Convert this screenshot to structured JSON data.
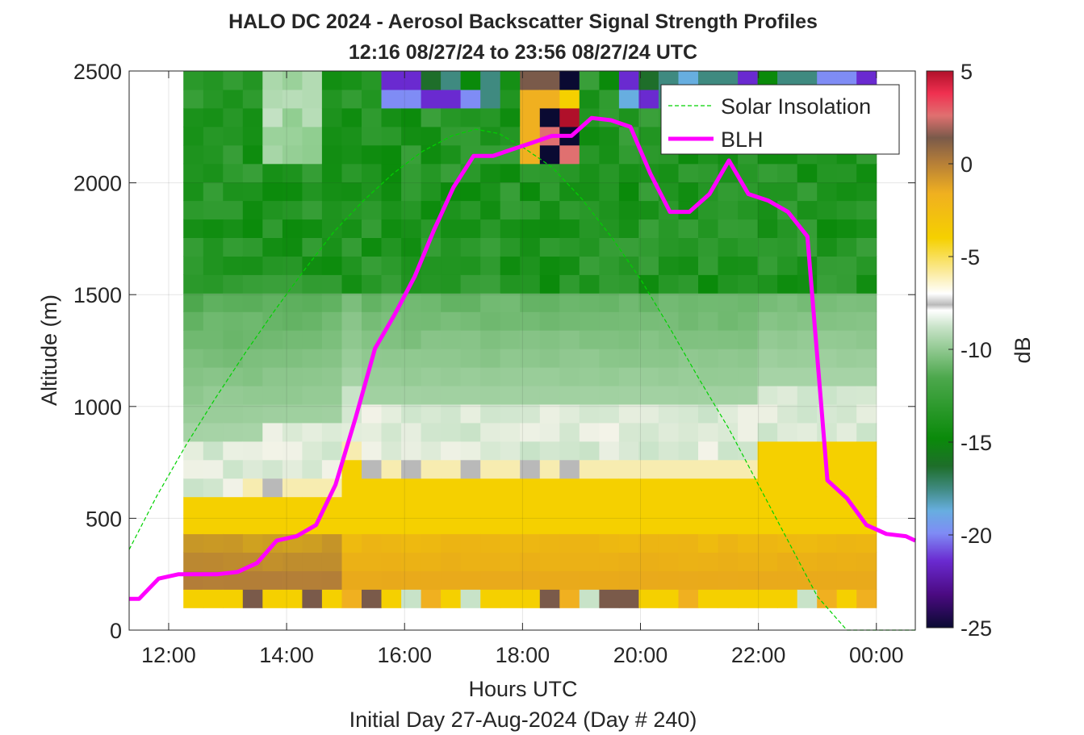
{
  "chart_data": {
    "type": "heatmap",
    "title_line1": "HALO DC 2024 - Aerosol Backscatter Signal Strength Profiles",
    "title_line2": "12:16 08/27/24 to 23:56 08/27/24  UTC",
    "xlabel": "Hours UTC",
    "xlabel2": "Initial Day 27-Aug-2024 (Day # 240)",
    "ylabel": "Altitude (m)",
    "colorbar_label": "dB",
    "xlim_hours": [
      11.33,
      24.66
    ],
    "ylim": [
      0,
      2500
    ],
    "x_ticks": [
      {
        "value": 12,
        "label": "12:00"
      },
      {
        "value": 14,
        "label": "14:00"
      },
      {
        "value": 16,
        "label": "16:00"
      },
      {
        "value": 18,
        "label": "18:00"
      },
      {
        "value": 20,
        "label": "20:00"
      },
      {
        "value": 22,
        "label": "22:00"
      },
      {
        "value": 24,
        "label": "00:00"
      }
    ],
    "y_ticks": [
      0,
      500,
      1000,
      1500,
      2000,
      2500
    ],
    "y_tick_labels": [
      "0",
      "500",
      "1000",
      "1500",
      "2000",
      "2500"
    ],
    "colorbar_ticks": [
      5,
      0,
      -5,
      -10,
      -15,
      -20,
      -25
    ],
    "colorbar_tick_labels": [
      "5",
      "0",
      "-5",
      "-10",
      "-15",
      "-20",
      "-25"
    ],
    "colorbar_range": [
      -25,
      5
    ],
    "grid": true,
    "legend_placement": "top-right",
    "series": [
      {
        "name": "Solar Insolation",
        "style": "dashed",
        "color": "#00d200",
        "x": [
          11.33,
          11.8,
          12.3,
          12.8,
          13.3,
          13.8,
          14.3,
          14.8,
          15.3,
          15.8,
          16.3,
          16.8,
          17.2,
          17.6,
          18.0,
          18.5,
          19.0,
          19.5,
          20.0,
          20.5,
          21.0,
          21.5,
          22.0,
          22.5,
          23.0,
          23.5,
          23.9,
          24.66
        ],
        "y": [
          360,
          600,
          830,
          1040,
          1240,
          1430,
          1610,
          1780,
          1920,
          2040,
          2140,
          2210,
          2240,
          2220,
          2160,
          2070,
          1930,
          1760,
          1570,
          1350,
          1120,
          900,
          650,
          400,
          150,
          0,
          0,
          0
        ]
      },
      {
        "name": "BLH",
        "style": "solid",
        "color": "#ff00ff",
        "x": [
          11.33,
          11.5,
          11.83,
          12.17,
          12.5,
          12.83,
          13.17,
          13.5,
          13.83,
          14.17,
          14.5,
          14.83,
          15.17,
          15.5,
          15.83,
          16.17,
          16.5,
          16.83,
          17.17,
          17.5,
          17.83,
          18.17,
          18.5,
          18.83,
          19.17,
          19.5,
          19.83,
          20.17,
          20.5,
          20.83,
          21.17,
          21.5,
          21.83,
          22.17,
          22.5,
          22.83,
          23.17,
          23.5,
          23.83,
          24.17,
          24.5,
          24.66
        ],
        "y": [
          140,
          140,
          230,
          250,
          250,
          250,
          260,
          300,
          400,
          420,
          470,
          650,
          950,
          1260,
          1410,
          1580,
          1790,
          1980,
          2120,
          2120,
          2150,
          2180,
          2210,
          2210,
          2290,
          2280,
          2250,
          2040,
          1870,
          1870,
          1950,
          2100,
          1950,
          1920,
          1870,
          1760,
          670,
          590,
          470,
          430,
          420,
          400
        ]
      }
    ]
  }
}
